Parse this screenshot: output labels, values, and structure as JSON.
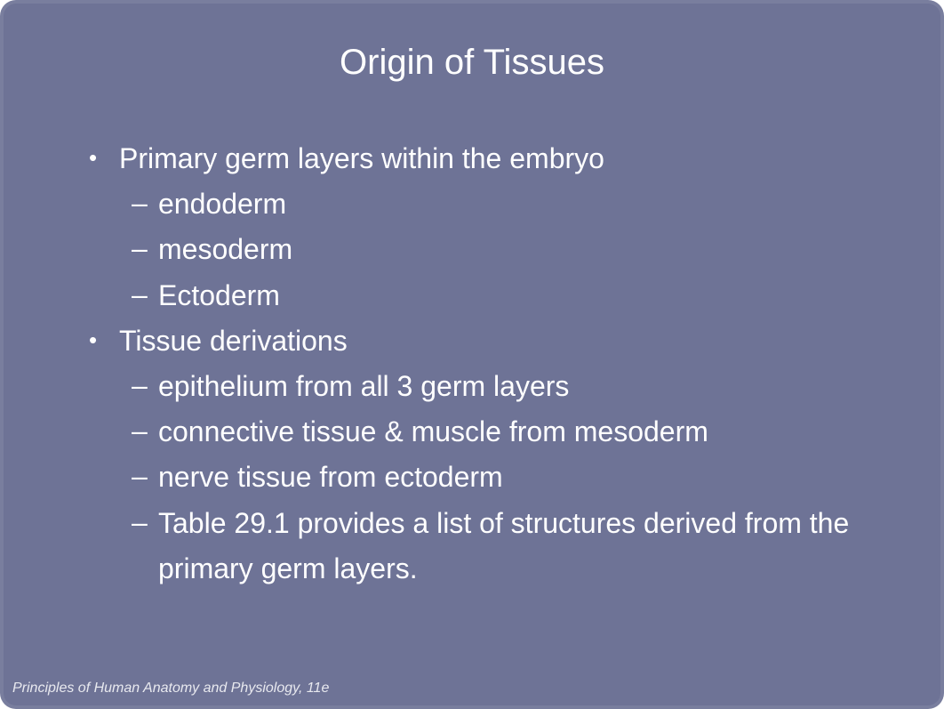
{
  "slide": {
    "title": "Origin of Tissues",
    "background_color": "#6e7396",
    "text_color": "#ffffff",
    "title_fontsize": 40,
    "body_fontsize": 32,
    "bullets": [
      {
        "level": 1,
        "marker": "•",
        "text": "Primary germ layers within the embryo"
      },
      {
        "level": 2,
        "marker": "–",
        "text": "endoderm"
      },
      {
        "level": 2,
        "marker": "–",
        "text": "mesoderm"
      },
      {
        "level": 2,
        "marker": "–",
        "text": "Ectoderm"
      },
      {
        "level": 1,
        "marker": "•",
        "text": "Tissue derivations"
      },
      {
        "level": 2,
        "marker": "–",
        "text": "epithelium from all 3 germ layers"
      },
      {
        "level": 2,
        "marker": "–",
        "text": "connective tissue & muscle from mesoderm"
      },
      {
        "level": 2,
        "marker": "–",
        "text": "nerve tissue from ectoderm"
      },
      {
        "level": 2,
        "marker": "–",
        "text": "Table 29.1 provides a list of structures derived from the primary germ layers."
      }
    ],
    "footer": "Principles of Human Anatomy and Physiology, 11e"
  }
}
